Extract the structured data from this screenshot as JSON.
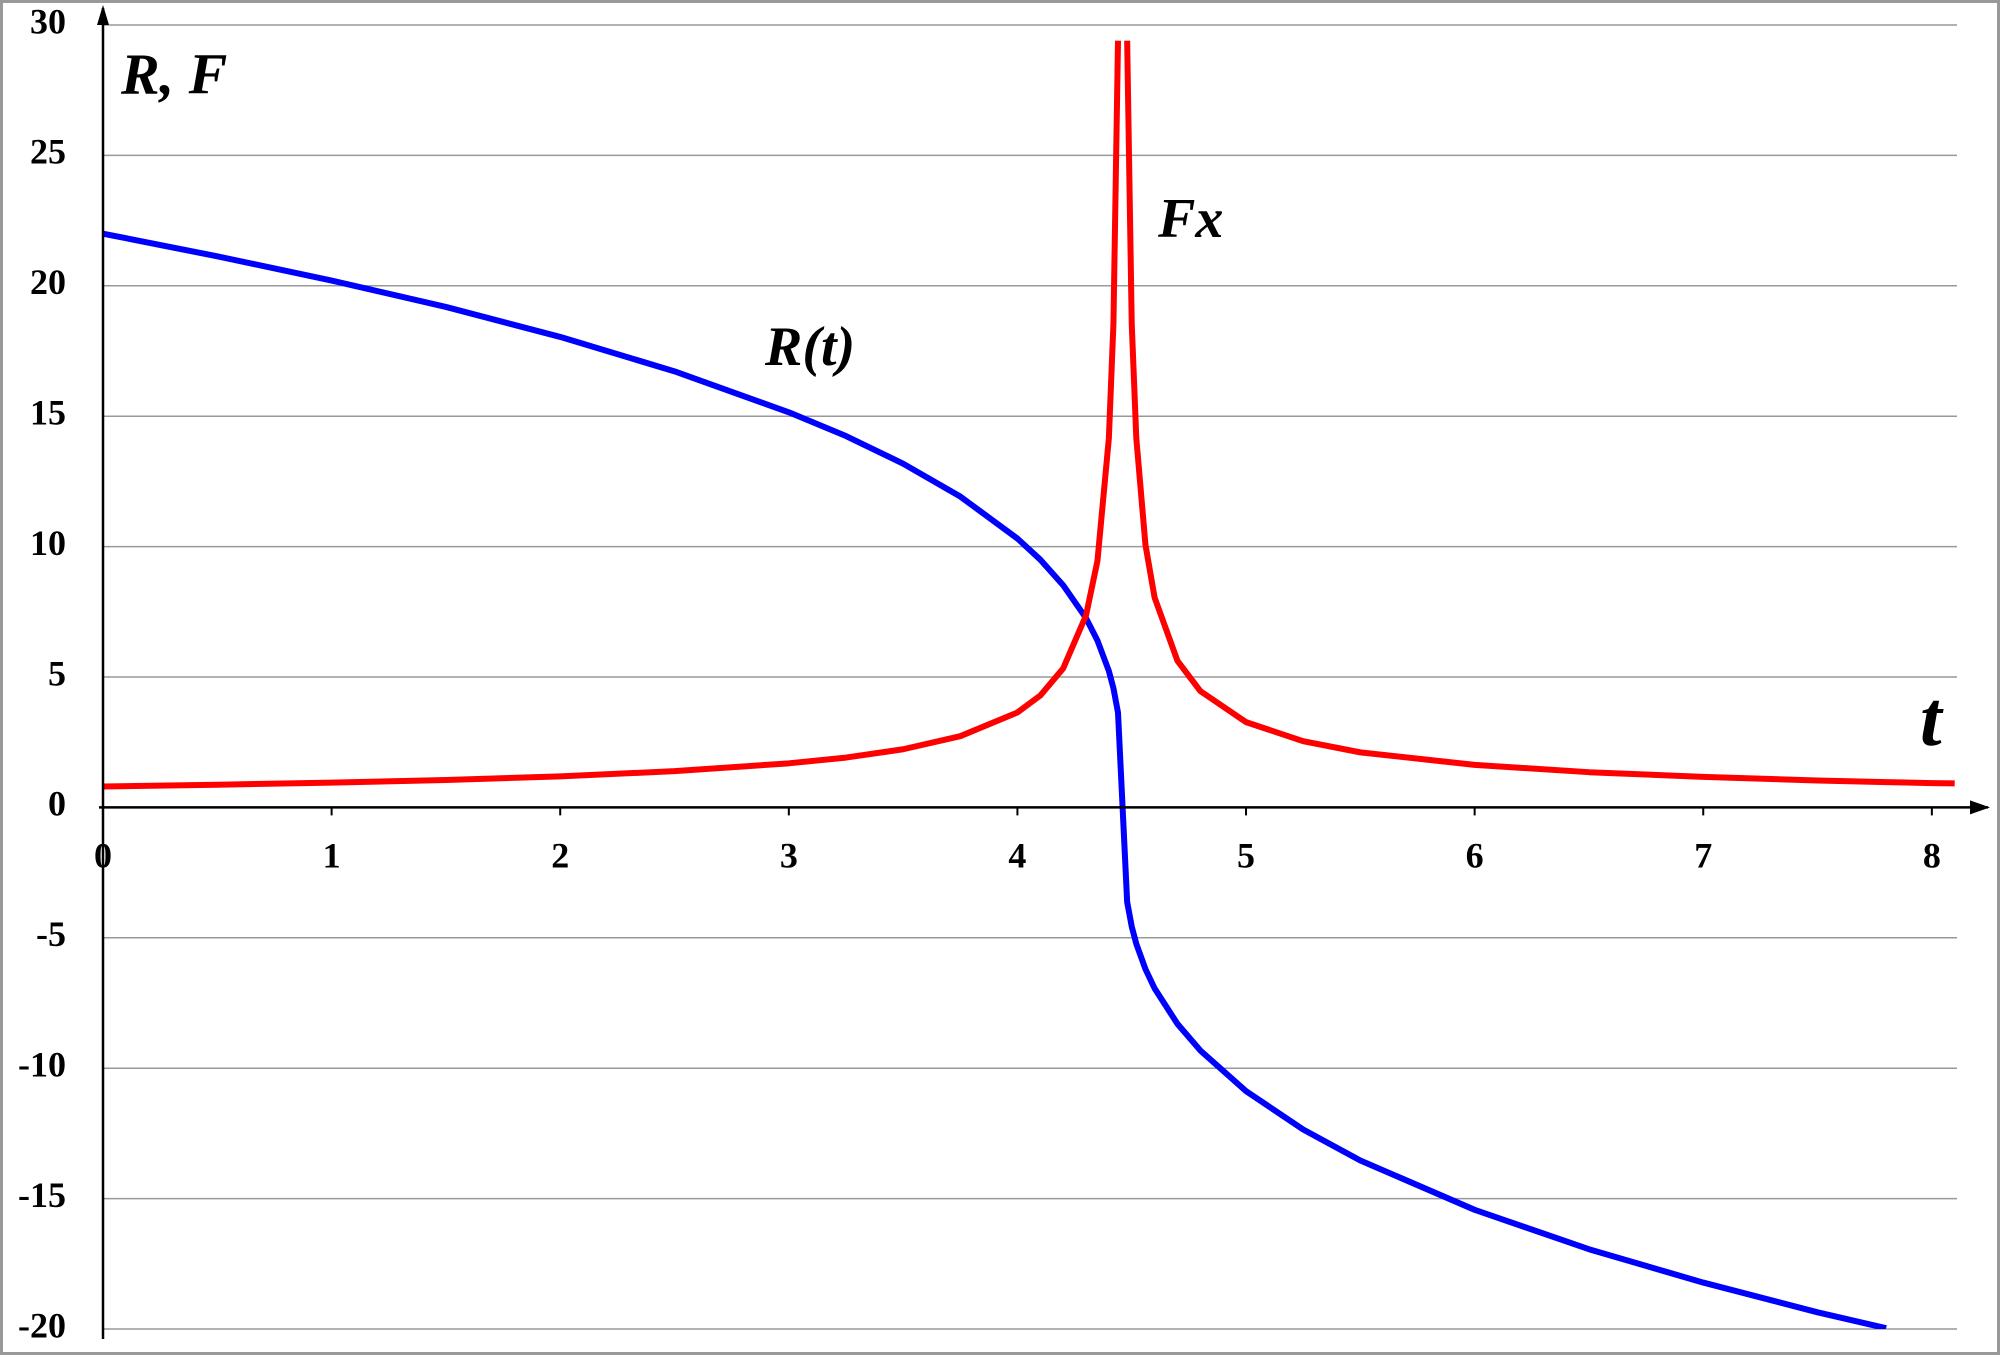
{
  "chart_data": {
    "type": "line",
    "x_label": "t",
    "y_label": "R, F",
    "x": [
      0,
      0.5,
      1,
      1.5,
      2,
      2.5,
      3,
      3.25,
      3.5,
      3.75,
      4,
      4.1,
      4.2,
      4.3,
      4.35,
      4.4,
      4.42,
      4.44,
      4.46,
      4.48,
      4.5,
      4.52,
      4.56,
      4.6,
      4.7,
      4.8,
      5,
      5.25,
      5.5,
      6,
      6.5,
      7,
      7.5,
      7.8,
      8,
      8.1
    ],
    "series": [
      {
        "name": "R(t)",
        "color": "#0000ff",
        "values": [
          22.0,
          21.13,
          20.2,
          19.19,
          18.04,
          16.72,
          15.15,
          14.24,
          13.18,
          11.92,
          10.31,
          9.5,
          8.52,
          7.26,
          6.4,
          5.23,
          4.57,
          3.63,
          0,
          -3.63,
          -4.57,
          -5.23,
          -6.2,
          -6.94,
          -8.3,
          -9.32,
          -10.88,
          -12.35,
          -13.54,
          -15.43,
          -16.94,
          -18.22,
          -19.36,
          -19.97,
          null,
          null
        ]
      },
      {
        "name": "Fx",
        "color": "#ff0000",
        "values": [
          0.8,
          0.87,
          0.95,
          1.05,
          1.19,
          1.39,
          1.69,
          1.91,
          2.23,
          2.73,
          3.64,
          4.29,
          5.33,
          7.36,
          9.45,
          14.16,
          18.55,
          29.4,
          null,
          29.4,
          18.55,
          14.16,
          10.07,
          8.05,
          5.62,
          4.46,
          3.27,
          2.54,
          2.11,
          1.63,
          1.35,
          1.17,
          1.03,
          0.97,
          0.93,
          0.92
        ]
      }
    ],
    "xlim": [
      0,
      8.11
    ],
    "ylim": [
      -20,
      30
    ],
    "xticks": [
      0,
      1,
      2,
      3,
      4,
      5,
      6,
      7,
      8
    ],
    "yticks": [
      -20,
      -15,
      -10,
      -5,
      0,
      5,
      10,
      15,
      20,
      25,
      30
    ],
    "grid": true
  }
}
